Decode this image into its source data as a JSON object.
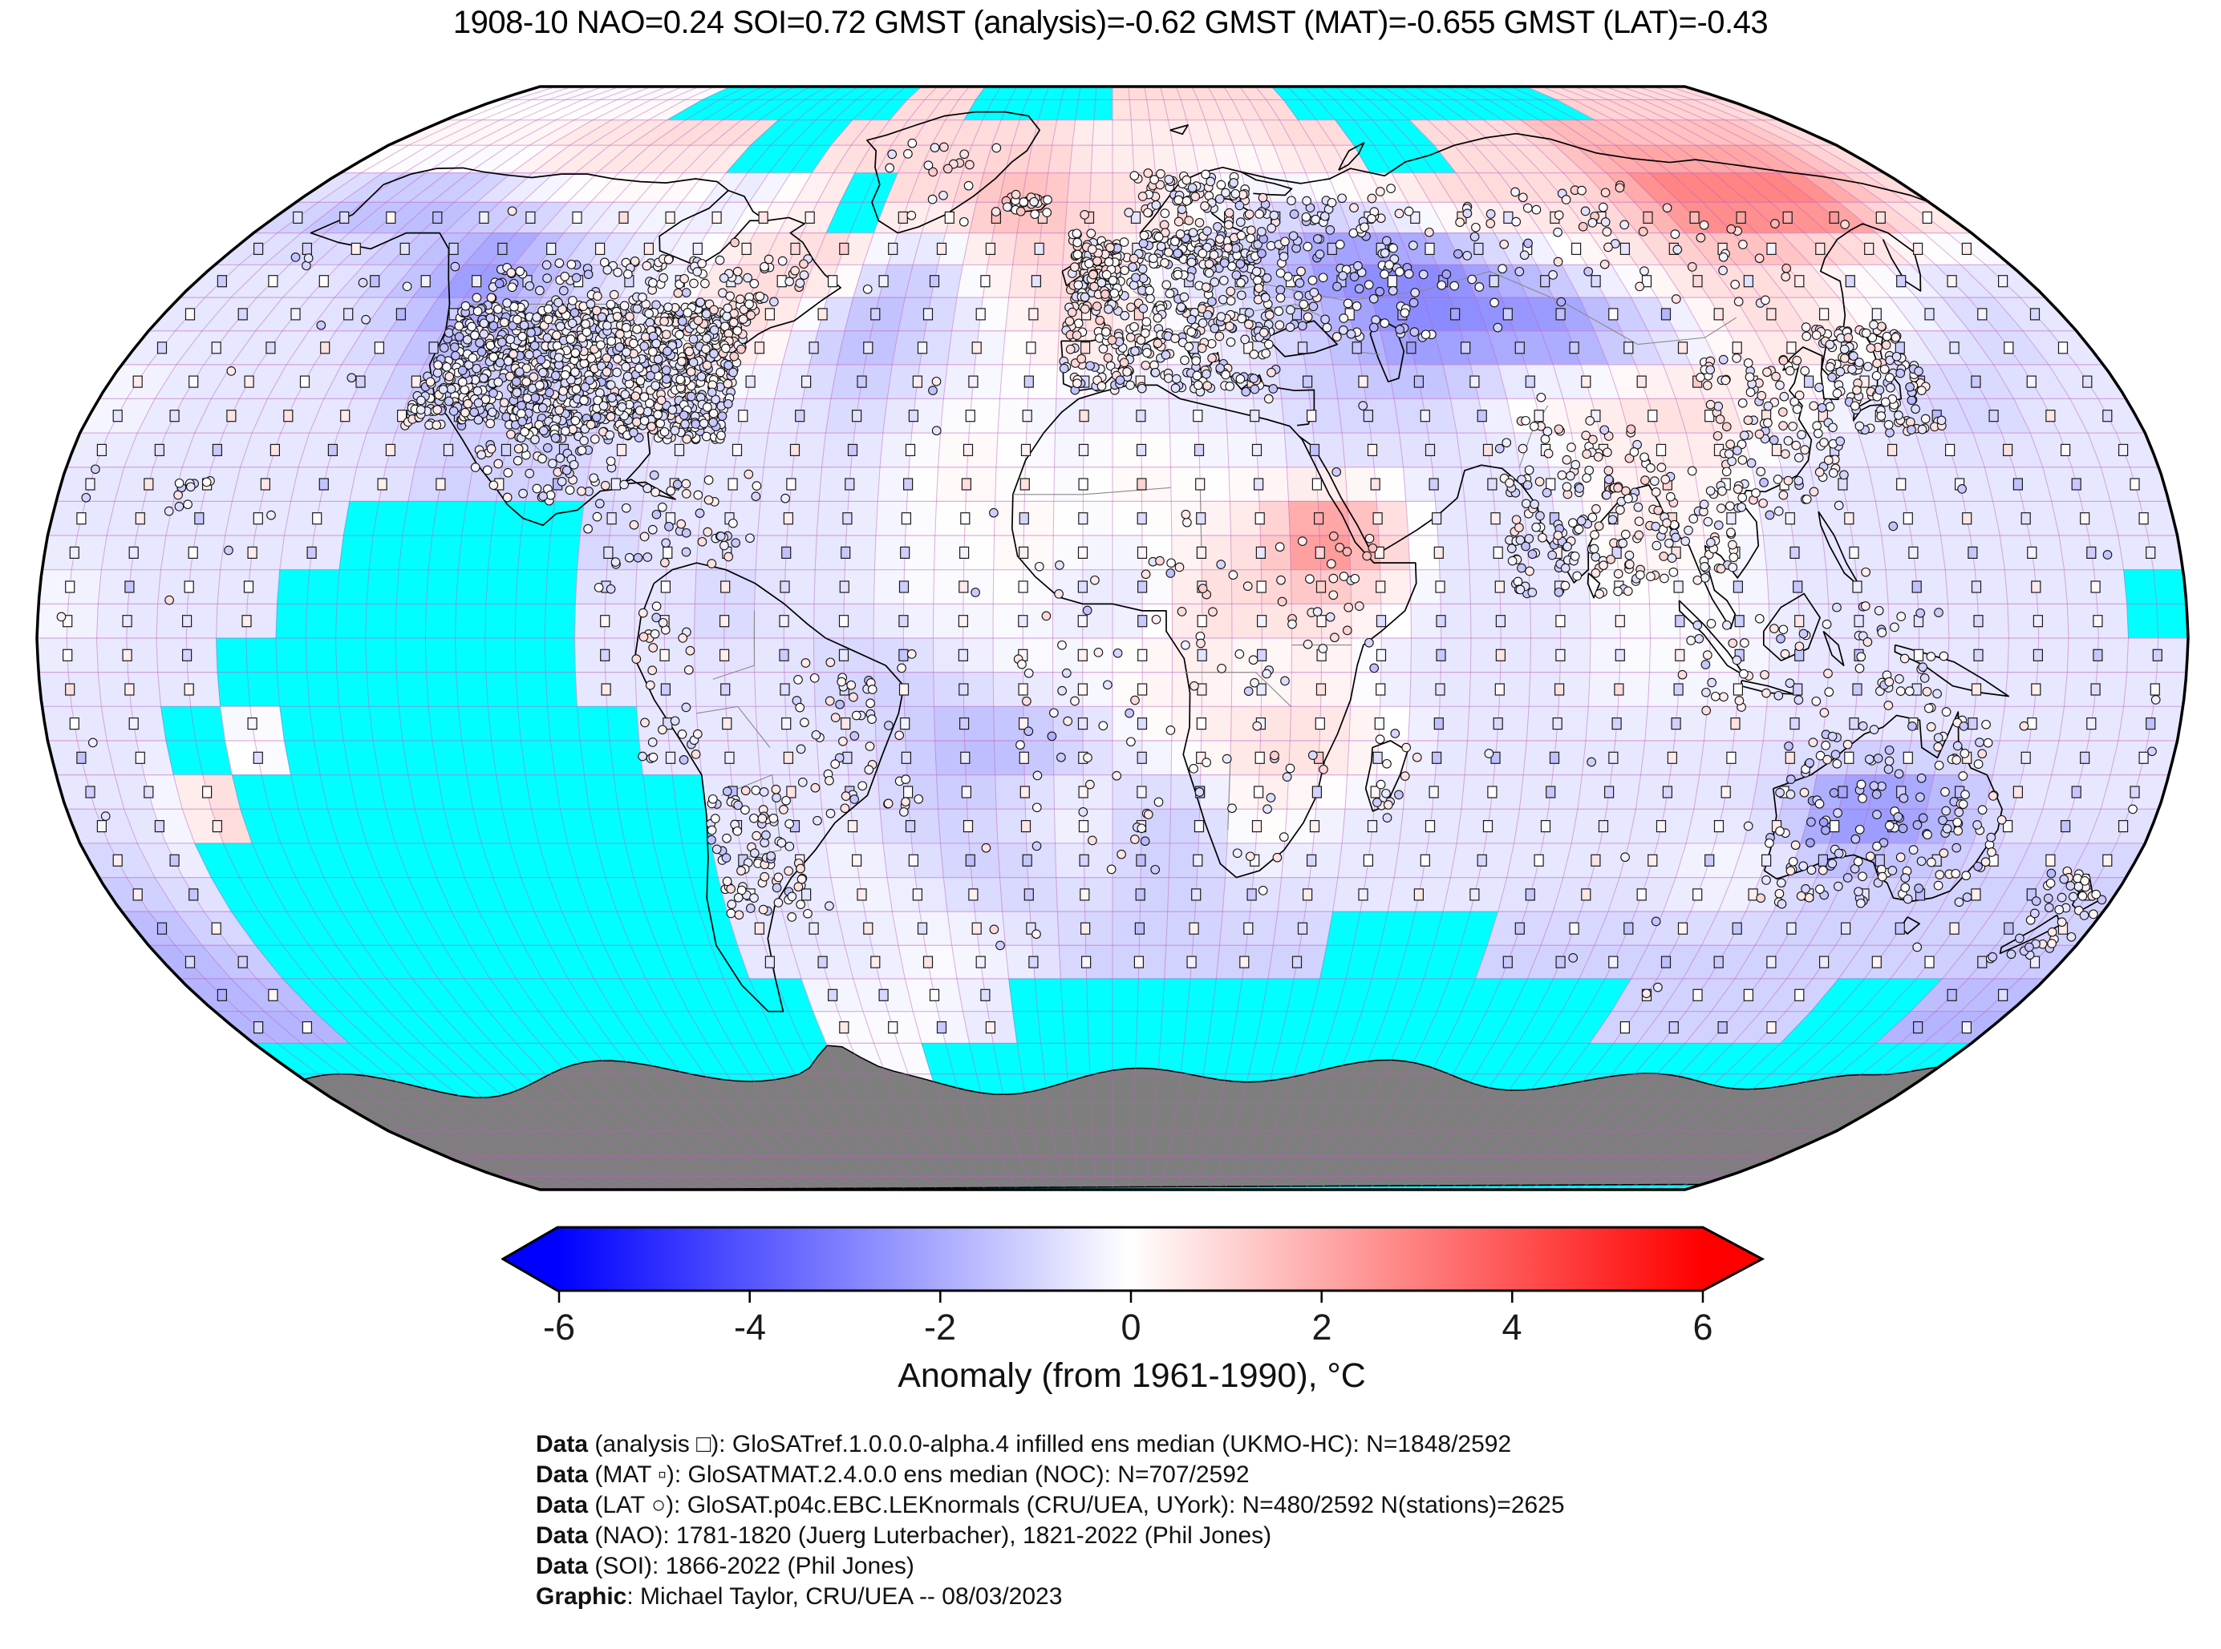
{
  "title": "1908-10 NAO=0.24 SOI=0.72 GMST (analysis)=-0.62 GMST (MAT)=-0.655 GMST (LAT)=-0.43",
  "stats": {
    "period": "1908-10",
    "nao": 0.24,
    "soi": 0.72,
    "gmst_analysis": -0.62,
    "gmst_mat": -0.655,
    "gmst_lat": -0.43
  },
  "colorbar": {
    "ticks": [
      "-6",
      "-4",
      "-2",
      "0",
      "2",
      "4",
      "6"
    ],
    "label": "Anomaly (from 1961-1990), °C",
    "vmin": -6,
    "vmax": 6,
    "colormap": [
      "#0000ff",
      "#ffffff",
      "#ff0000"
    ]
  },
  "caption": [
    {
      "bold": "Data",
      "rest": " (analysis □): GloSATref.1.0.0.0-alpha.4 infilled ens median (UKMO-HC): N=1848/2592"
    },
    {
      "bold": "Data",
      "rest": " (MAT ▫): GloSATMAT.2.4.0.0 ens median (NOC): N=707/2592"
    },
    {
      "bold": "Data",
      "rest": " (LAT ○): GloSAT.p04c.EBC.LEKnormals (CRU/UEA, UYork): N=480/2592 N(stations)=2625"
    },
    {
      "bold": "Data",
      "rest": " (NAO): 1781-1820 (Juerg Luterbacher), 1821-2022 (Phil Jones)"
    },
    {
      "bold": "Data",
      "rest": " (SOI): 1866-2022 (Phil Jones)"
    },
    {
      "bold": "Graphic",
      "rest": ": Michael Taylor, CRU/UEA -- 08/03/2023"
    }
  ],
  "map": {
    "projection": "robinson",
    "missing_color": "#00ffff",
    "antarctica_color": "#7e7e7e",
    "grid_line_color": "rgba(190,95,190,0.5)",
    "coast_color": "#000000",
    "country_border_color": "#8a8a8a",
    "outline_color": "#000000",
    "legend_markers": {
      "analysis": "□",
      "mat": "▫",
      "lat": "○"
    },
    "anomaly_grid": {
      "lon_start": -180,
      "lat_start": 90,
      "cell_deg": 10,
      "codes": {
        "missing": "C",
        "values": {
          "h": -0.1,
          "i": -0.45,
          "j": -0.85,
          "k": -1.4,
          "l": -2.2,
          "p": 0.35,
          "q": 0.9,
          "r": 1.8,
          "s": 3.6
        }
      },
      "rows": [
        "hhhhhhCCCCCCqqCCCCqqqqqCCCCCCCCqqqqq",
        "ppppqqqqqCCqqqqqqpppppqqCCqqqrrrrrrq",
        "jkkkjihhhihpCqqrrqqphiihpqqqqrssssrq",
        "iiijklkjihqqqjjpqqhijklllkjhpqqqphii",
        "iiiijkkjiipqjkjipqphijkllllkjpqphiji",
        "hiiiijjjjiiiijihhiiiijjjippqqphijjii",
        "iiiiiijjjiiiiihphhphhiiiiipppiiiiiii",
        "iiiiiCCCCjiiiihhphhpqsriiipphiiiiiii",
        "hiiiCCCCCiijiihhhiiqqqpiiihhhiiiiiiC",
        "iiiCCCCCCiiiijjihhpphpiiiihhhiiiiiii",
        "iiChCCCCCCiiiijkkjhpqqpiiiiiiiiiiiii",
        "iiqCCCCCCCCiiijjihjjphiiiiiiijllkiii",
        "jiCCCCCCCCCiihijjijjiiiiiiiihhjjjjjj",
        "kjCCCCCCCCCiiihhijjjjjCCCjjjjjjjjjjj",
        "kkCCCCCCCCCChhhiCCCCCCCCCCCCjjjjCCkk",
        "CCCCCCCCCCCChhCCCCCCCCCCCCCCCCCCCCCC",
        "CCCCCCCCCCCCCCCCCCCCCCCCCCCCCCCCCCCC",
        "CCCCCCCCCCCCCCCCCCCCCCCCCCCCCCCCCCCC"
      ]
    }
  }
}
